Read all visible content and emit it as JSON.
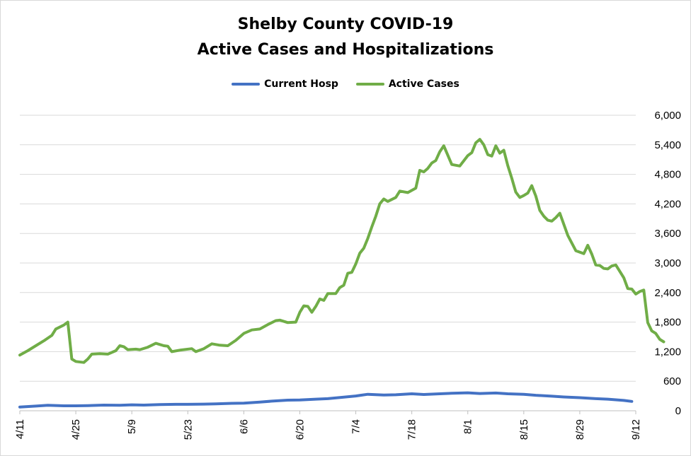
{
  "chart_data": {
    "type": "line",
    "title": "Shelby County COVID-19",
    "subtitle": "Active Cases and Hospitalizations",
    "x_ticks": [
      "4/11",
      "4/25",
      "5/9",
      "5/23",
      "6/6",
      "6/20",
      "7/4",
      "7/18",
      "8/1",
      "8/15",
      "8/29",
      "9/12"
    ],
    "x_tick_dates": [
      "2020-04-11",
      "2020-04-25",
      "2020-05-09",
      "2020-05-23",
      "2020-06-06",
      "2020-06-20",
      "2020-07-04",
      "2020-07-18",
      "2020-08-01",
      "2020-08-15",
      "2020-08-29",
      "2020-09-12"
    ],
    "ylim": [
      0,
      6000
    ],
    "y_ticks": [
      "0",
      "600",
      "1,200",
      "1,800",
      "2,400",
      "3,000",
      "3,600",
      "4,200",
      "4,800",
      "5,400",
      "6,000"
    ],
    "y_tick_values": [
      0,
      600,
      1200,
      1800,
      2400,
      3000,
      3600,
      4200,
      4800,
      5400,
      6000
    ],
    "y_axis_position": "right",
    "grid": "horizontal",
    "legend_position": "top",
    "series": [
      {
        "name": "Current Hosp",
        "color": "#4472c4",
        "points": [
          [
            "2020-04-11",
            75
          ],
          [
            "2020-04-15",
            95
          ],
          [
            "2020-04-18",
            110
          ],
          [
            "2020-04-22",
            100
          ],
          [
            "2020-04-25",
            100
          ],
          [
            "2020-04-28",
            105
          ],
          [
            "2020-05-02",
            115
          ],
          [
            "2020-05-06",
            110
          ],
          [
            "2020-05-09",
            120
          ],
          [
            "2020-05-12",
            115
          ],
          [
            "2020-05-16",
            125
          ],
          [
            "2020-05-20",
            130
          ],
          [
            "2020-05-23",
            130
          ],
          [
            "2020-05-27",
            135
          ],
          [
            "2020-05-30",
            140
          ],
          [
            "2020-06-03",
            150
          ],
          [
            "2020-06-06",
            155
          ],
          [
            "2020-06-10",
            175
          ],
          [
            "2020-06-13",
            195
          ],
          [
            "2020-06-17",
            215
          ],
          [
            "2020-06-20",
            220
          ],
          [
            "2020-06-24",
            235
          ],
          [
            "2020-06-27",
            245
          ],
          [
            "2020-07-01",
            275
          ],
          [
            "2020-07-04",
            300
          ],
          [
            "2020-07-07",
            335
          ],
          [
            "2020-07-11",
            320
          ],
          [
            "2020-07-14",
            325
          ],
          [
            "2020-07-18",
            345
          ],
          [
            "2020-07-21",
            330
          ],
          [
            "2020-07-25",
            345
          ],
          [
            "2020-07-28",
            355
          ],
          [
            "2020-08-01",
            365
          ],
          [
            "2020-08-04",
            350
          ],
          [
            "2020-08-08",
            360
          ],
          [
            "2020-08-11",
            345
          ],
          [
            "2020-08-15",
            335
          ],
          [
            "2020-08-18",
            315
          ],
          [
            "2020-08-22",
            295
          ],
          [
            "2020-08-25",
            280
          ],
          [
            "2020-08-29",
            265
          ],
          [
            "2020-09-02",
            245
          ],
          [
            "2020-09-05",
            235
          ],
          [
            "2020-09-09",
            210
          ],
          [
            "2020-09-11",
            190
          ]
        ]
      },
      {
        "name": "Active Cases",
        "color": "#70ad47",
        "points": [
          [
            "2020-04-11",
            1130
          ],
          [
            "2020-04-13",
            1220
          ],
          [
            "2020-04-15",
            1320
          ],
          [
            "2020-04-17",
            1420
          ],
          [
            "2020-04-19",
            1530
          ],
          [
            "2020-04-20",
            1660
          ],
          [
            "2020-04-22",
            1740
          ],
          [
            "2020-04-23",
            1800
          ],
          [
            "2020-04-24",
            1050
          ],
          [
            "2020-04-25",
            1000
          ],
          [
            "2020-04-27",
            980
          ],
          [
            "2020-04-28",
            1050
          ],
          [
            "2020-04-29",
            1150
          ],
          [
            "2020-05-01",
            1160
          ],
          [
            "2020-05-03",
            1150
          ],
          [
            "2020-05-05",
            1220
          ],
          [
            "2020-05-06",
            1320
          ],
          [
            "2020-05-07",
            1300
          ],
          [
            "2020-05-08",
            1240
          ],
          [
            "2020-05-10",
            1250
          ],
          [
            "2020-05-11",
            1240
          ],
          [
            "2020-05-13",
            1290
          ],
          [
            "2020-05-15",
            1370
          ],
          [
            "2020-05-17",
            1320
          ],
          [
            "2020-05-18",
            1310
          ],
          [
            "2020-05-19",
            1200
          ],
          [
            "2020-05-21",
            1230
          ],
          [
            "2020-05-24",
            1260
          ],
          [
            "2020-05-25",
            1200
          ],
          [
            "2020-05-27",
            1260
          ],
          [
            "2020-05-29",
            1360
          ],
          [
            "2020-05-31",
            1330
          ],
          [
            "2020-06-02",
            1320
          ],
          [
            "2020-06-04",
            1430
          ],
          [
            "2020-06-06",
            1570
          ],
          [
            "2020-06-08",
            1640
          ],
          [
            "2020-06-10",
            1660
          ],
          [
            "2020-06-12",
            1750
          ],
          [
            "2020-06-14",
            1830
          ],
          [
            "2020-06-15",
            1840
          ],
          [
            "2020-06-17",
            1790
          ],
          [
            "2020-06-19",
            1800
          ],
          [
            "2020-06-20",
            2000
          ],
          [
            "2020-06-21",
            2130
          ],
          [
            "2020-06-22",
            2120
          ],
          [
            "2020-06-23",
            2000
          ],
          [
            "2020-06-24",
            2120
          ],
          [
            "2020-06-25",
            2270
          ],
          [
            "2020-06-26",
            2240
          ],
          [
            "2020-06-27",
            2380
          ],
          [
            "2020-06-29",
            2380
          ],
          [
            "2020-06-30",
            2500
          ],
          [
            "2020-07-01",
            2550
          ],
          [
            "2020-07-02",
            2790
          ],
          [
            "2020-07-03",
            2810
          ],
          [
            "2020-07-04",
            2980
          ],
          [
            "2020-07-05",
            3200
          ],
          [
            "2020-07-06",
            3300
          ],
          [
            "2020-07-07",
            3500
          ],
          [
            "2020-07-08",
            3730
          ],
          [
            "2020-07-09",
            3950
          ],
          [
            "2020-07-10",
            4200
          ],
          [
            "2020-07-11",
            4300
          ],
          [
            "2020-07-12",
            4250
          ],
          [
            "2020-07-14",
            4330
          ],
          [
            "2020-07-15",
            4460
          ],
          [
            "2020-07-17",
            4430
          ],
          [
            "2020-07-19",
            4520
          ],
          [
            "2020-07-20",
            4880
          ],
          [
            "2020-07-21",
            4850
          ],
          [
            "2020-07-22",
            4920
          ],
          [
            "2020-07-23",
            5030
          ],
          [
            "2020-07-24",
            5080
          ],
          [
            "2020-07-25",
            5260
          ],
          [
            "2020-07-26",
            5380
          ],
          [
            "2020-07-28",
            5000
          ],
          [
            "2020-07-30",
            4970
          ],
          [
            "2020-08-01",
            5180
          ],
          [
            "2020-08-02",
            5240
          ],
          [
            "2020-08-03",
            5440
          ],
          [
            "2020-08-04",
            5510
          ],
          [
            "2020-08-05",
            5400
          ],
          [
            "2020-08-06",
            5200
          ],
          [
            "2020-08-07",
            5170
          ],
          [
            "2020-08-08",
            5380
          ],
          [
            "2020-08-09",
            5230
          ],
          [
            "2020-08-10",
            5290
          ],
          [
            "2020-08-11",
            4980
          ],
          [
            "2020-08-12",
            4720
          ],
          [
            "2020-08-13",
            4440
          ],
          [
            "2020-08-14",
            4330
          ],
          [
            "2020-08-15",
            4370
          ],
          [
            "2020-08-16",
            4420
          ],
          [
            "2020-08-17",
            4570
          ],
          [
            "2020-08-18",
            4360
          ],
          [
            "2020-08-19",
            4070
          ],
          [
            "2020-08-20",
            3950
          ],
          [
            "2020-08-21",
            3870
          ],
          [
            "2020-08-22",
            3850
          ],
          [
            "2020-08-23",
            3920
          ],
          [
            "2020-08-24",
            4010
          ],
          [
            "2020-08-26",
            3560
          ],
          [
            "2020-08-28",
            3250
          ],
          [
            "2020-08-30",
            3190
          ],
          [
            "2020-08-31",
            3360
          ],
          [
            "2020-09-01",
            3180
          ],
          [
            "2020-09-02",
            2960
          ],
          [
            "2020-09-03",
            2950
          ],
          [
            "2020-09-04",
            2890
          ],
          [
            "2020-09-05",
            2880
          ],
          [
            "2020-09-06",
            2940
          ],
          [
            "2020-09-07",
            2960
          ],
          [
            "2020-09-09",
            2700
          ],
          [
            "2020-09-10",
            2480
          ],
          [
            "2020-09-11",
            2470
          ],
          [
            "2020-09-12",
            2370
          ],
          [
            "2020-09-13",
            2420
          ],
          [
            "2020-09-14",
            2450
          ],
          [
            "2020-09-15",
            1790
          ],
          [
            "2020-09-16",
            1620
          ],
          [
            "2020-09-17",
            1570
          ],
          [
            "2020-09-18",
            1450
          ],
          [
            "2020-09-19",
            1400
          ]
        ]
      }
    ]
  }
}
